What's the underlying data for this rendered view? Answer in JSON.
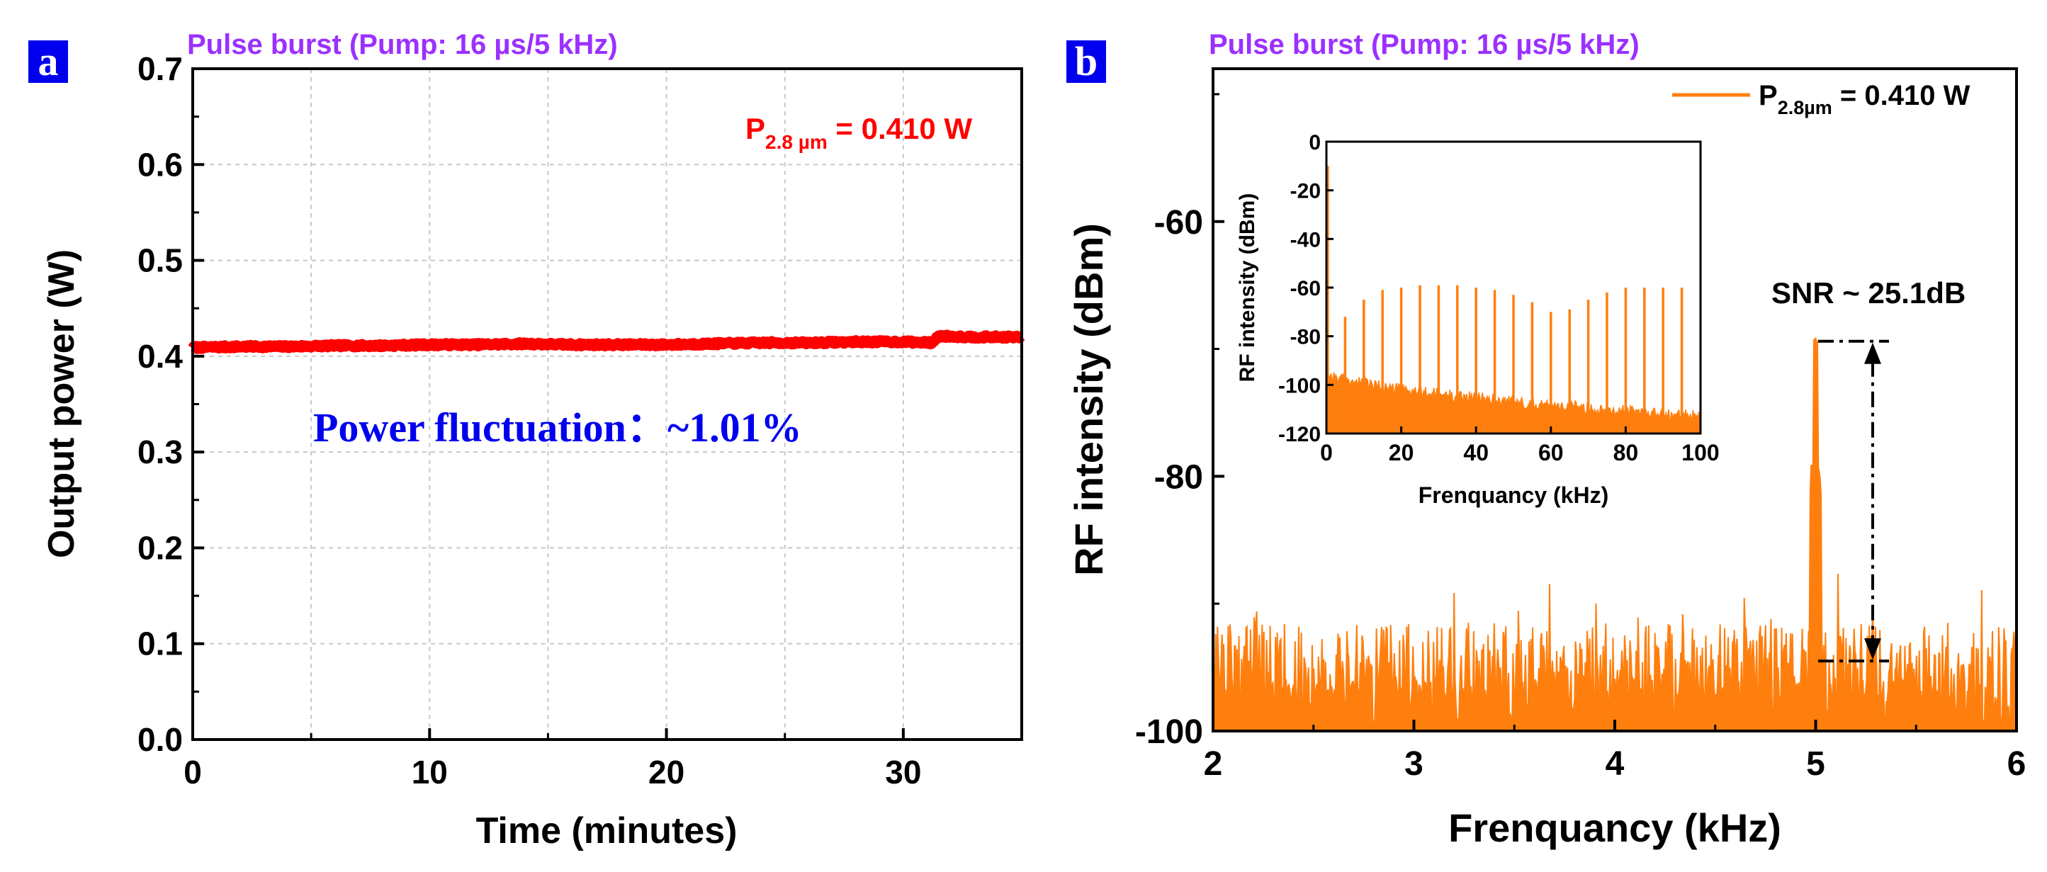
{
  "chart_data": [
    {
      "type": "line",
      "panel_label": "a",
      "title": "Pulse burst (Pump: 16 µs/5 kHz)",
      "xlabel": "Time (minutes)",
      "ylabel": "Output power (W)",
      "xlim": [
        0,
        35
      ],
      "ylim": [
        0,
        0.7
      ],
      "xticks": [
        0,
        10,
        20,
        30
      ],
      "xtick_labels": [
        "0",
        "10",
        "20",
        "30"
      ],
      "yticks": [
        0.0,
        0.1,
        0.2,
        0.3,
        0.4,
        0.5,
        0.6,
        0.7
      ],
      "ytick_labels": [
        "0.0",
        "0.1",
        "0.2",
        "0.3",
        "0.4",
        "0.5",
        "0.6",
        "0.7"
      ],
      "grid": true,
      "legend_prefix": "P",
      "legend_sub": "2.8 µm",
      "legend_suffix": " = 0.410 W",
      "annotation": "Power fluctuation：~1.01%",
      "color": "#ff0000",
      "series": [
        {
          "name": "P2.8µm = 0.410 W",
          "x": [
            0,
            2,
            4,
            6,
            8,
            10,
            12,
            14,
            16,
            18,
            20,
            22,
            24,
            26,
            28,
            30,
            31.2,
            31.5,
            33,
            35
          ],
          "y": [
            0.409,
            0.41,
            0.41,
            0.411,
            0.411,
            0.412,
            0.412,
            0.413,
            0.412,
            0.412,
            0.412,
            0.413,
            0.414,
            0.414,
            0.415,
            0.415,
            0.414,
            0.421,
            0.42,
            0.42
          ]
        }
      ]
    },
    {
      "type": "line",
      "panel_label": "b",
      "title": "Pulse burst (Pump: 16 µs/5 kHz)",
      "xlabel": "Frenquancy (kHz)",
      "ylabel": "RF intensity (dBm)",
      "xlim": [
        2,
        6
      ],
      "ylim": [
        -100,
        -48
      ],
      "xticks": [
        2,
        3,
        4,
        5,
        6
      ],
      "xtick_labels": [
        "2",
        "3",
        "4",
        "5",
        "6"
      ],
      "yticks": [
        -60,
        -80,
        -100
      ],
      "ytick_labels": [
        "-60",
        "-80",
        "-100"
      ],
      "legend_prefix": "P",
      "legend_sub": "2.8µm",
      "legend_suffix": " = 0.410 W",
      "annotation": "SNR ~ 25.1dB",
      "color": "#ff7f0e",
      "noise_floor_dbm": -94.5,
      "peak": {
        "x": 5.0,
        "y": -69.4
      },
      "snr_db": 25.1,
      "inset": {
        "xlabel": "Frenquancy (kHz)",
        "ylabel": "RF intensity (dBm)",
        "xlim": [
          0,
          100
        ],
        "ylim": [
          -120,
          0
        ],
        "xticks": [
          0,
          20,
          40,
          60,
          80,
          100
        ],
        "xtick_labels": [
          "0",
          "20",
          "40",
          "60",
          "80",
          "100"
        ],
        "yticks": [
          0,
          -20,
          -40,
          -60,
          -80,
          -100,
          -120
        ],
        "ytick_labels": [
          "0",
          "-20",
          "-40",
          "-60",
          "-80",
          "-100",
          "-120"
        ],
        "harmonics_khz": [
          5,
          10,
          15,
          20,
          25,
          30,
          35,
          40,
          45,
          50,
          55,
          60,
          65,
          70,
          75,
          80,
          85,
          90,
          95
        ],
        "harmonics_dbm": [
          -72,
          -65,
          -61,
          -60,
          -59,
          -59,
          -59,
          -60,
          -61,
          -63,
          -66,
          -70,
          -69,
          -65,
          -62,
          -60,
          -60,
          -60,
          -60
        ],
        "noise_floor_start_dbm": -95,
        "noise_floor_end_dbm": -113
      }
    }
  ]
}
